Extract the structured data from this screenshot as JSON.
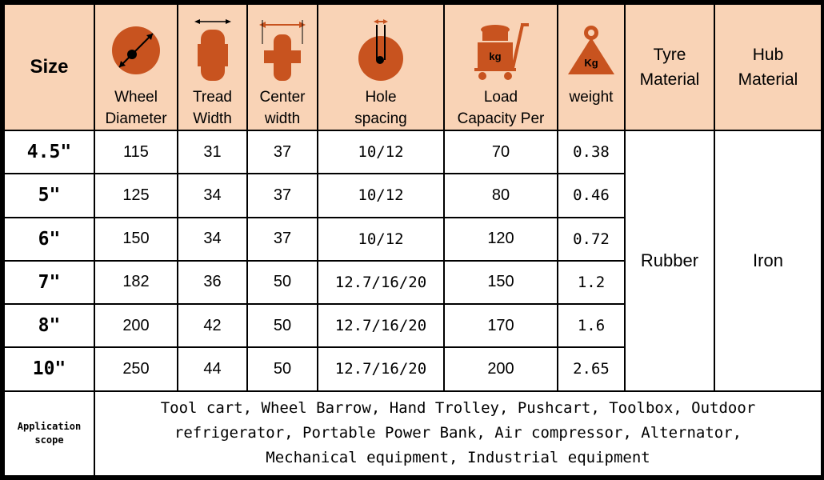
{
  "header": {
    "size": "Size",
    "wheel_diameter": [
      "Wheel",
      "Diameter"
    ],
    "tread_width": [
      "Tread",
      "Width"
    ],
    "center_width": [
      "Center",
      "width"
    ],
    "hole_spacing": [
      "Hole",
      "spacing"
    ],
    "load_capacity": [
      "Load",
      "Capacity Per"
    ],
    "weight": "weight",
    "tyre_material": [
      "Tyre",
      "Material"
    ],
    "hub_material": [
      "Hub",
      "Material"
    ],
    "kg_label": "kg",
    "weight_kg_label": "Kg"
  },
  "rows": [
    {
      "size": "4.5\"",
      "diameter": "115",
      "tread": "31",
      "center": "37",
      "hole": "10/12",
      "load": "70",
      "weight": "0.38"
    },
    {
      "size": "5\"",
      "diameter": "125",
      "tread": "34",
      "center": "37",
      "hole": "10/12",
      "load": "80",
      "weight": "0.46"
    },
    {
      "size": "6\"",
      "diameter": "150",
      "tread": "34",
      "center": "37",
      "hole": "10/12",
      "load": "120",
      "weight": "0.72"
    },
    {
      "size": "7\"",
      "diameter": "182",
      "tread": "36",
      "center": "50",
      "hole": "12.7/16/20",
      "load": "150",
      "weight": "1.2"
    },
    {
      "size": "8\"",
      "diameter": "200",
      "tread": "42",
      "center": "50",
      "hole": "12.7/16/20",
      "load": "170",
      "weight": "1.6"
    },
    {
      "size": "10\"",
      "diameter": "250",
      "tread": "44",
      "center": "50",
      "hole": "12.7/16/20",
      "load": "200",
      "weight": "2.65"
    }
  ],
  "tyre_material": "Rubber",
  "hub_material": "Iron",
  "application": {
    "label": [
      "Application",
      "scope"
    ],
    "lines": [
      "Tool cart, Wheel Barrow, Hand Trolley, Pushcart, Toolbox, Outdoor",
      "refrigerator, Portable Power Bank, Air compressor, Alternator,",
      "Mechanical equipment, Industrial equipment"
    ]
  },
  "colors": {
    "header_bg": "#f9d3b6",
    "icon": "#c8531f",
    "border": "#000000"
  },
  "icons": [
    "wheel-diameter-icon",
    "tread-width-icon",
    "center-width-icon",
    "hole-spacing-icon",
    "load-cart-icon",
    "weight-icon"
  ]
}
